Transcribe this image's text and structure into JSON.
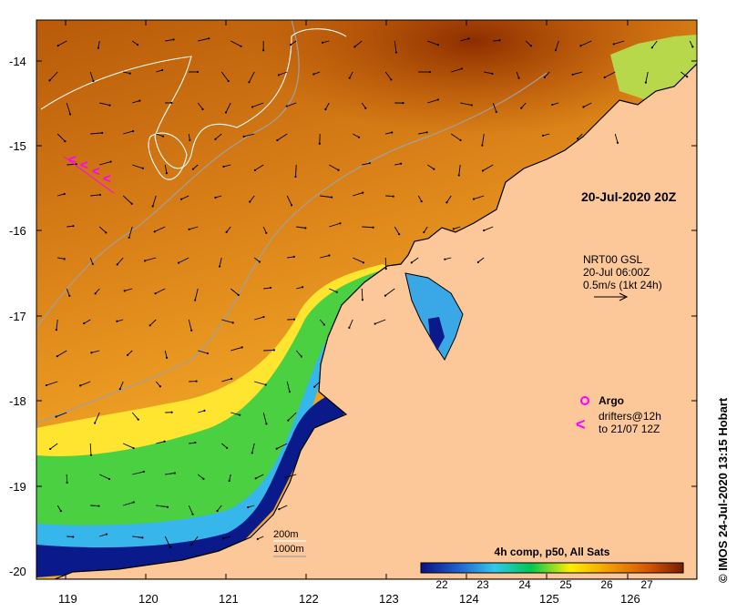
{
  "map": {
    "date_label": "20-Jul-2020 20Z",
    "current_info": [
      "NRT00 GSL",
      "20-Jul 06:00Z",
      "0.5m/s (1kt 24h)"
    ],
    "legend": {
      "argo_label": "Argo",
      "drifters_line1": "drifters@12h",
      "drifters_line2": "to 21/07 12Z"
    },
    "contours": [
      "200m",
      "1000m"
    ],
    "colorbar": {
      "title": "4h comp, p50, All Sats",
      "ticks": [
        "22",
        "23",
        "24",
        "25",
        "26",
        "27"
      ],
      "colors": [
        "#0a1080",
        "#1f5fd0",
        "#33c7ee",
        "#00c850",
        "#ffef00",
        "#f4a000",
        "#d85a00",
        "#7a1c00"
      ]
    },
    "credit": "© IMOS 24-Jul-2020 13:15 Hobart",
    "lat_labels": [
      "-14",
      "-15",
      "-16",
      "-17",
      "-18",
      "-19",
      "-20"
    ],
    "lon_labels": [
      "119",
      "120",
      "121",
      "122",
      "123",
      "124",
      "125",
      "126"
    ],
    "colors": {
      "land": "#fcc89a",
      "arrows": "#000000",
      "drifter": "#ff00ff"
    }
  }
}
